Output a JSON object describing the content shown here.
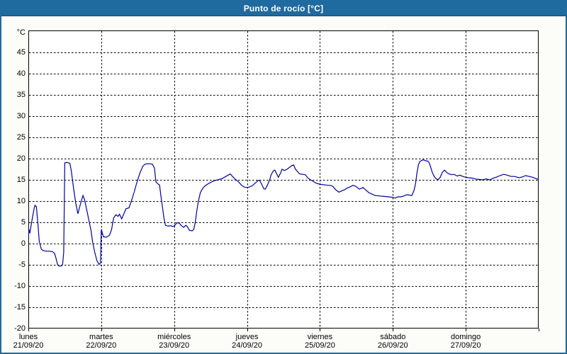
{
  "window": {
    "title": "Punto de rocío [°C]"
  },
  "colors": {
    "header_bg": "#1f6a9e",
    "frame_border": "#1f6a9e",
    "panel_bg": "#fcfdf8",
    "plot_bg": "#ffffff",
    "grid": "#000000",
    "line": "#0000a0",
    "title_text": "#ffffff",
    "axis_text": "#000000"
  },
  "chart_data": {
    "type": "line",
    "title": "Punto de rocío [°C]",
    "ylabel": "°C",
    "y_unit_label": "°C",
    "ylim": [
      -20,
      45
    ],
    "y_top_value": 50.17,
    "ytick_step": 5,
    "yticks": [
      45,
      40,
      35,
      30,
      25,
      20,
      15,
      10,
      5,
      0,
      -5,
      -10,
      -15,
      -20
    ],
    "grid": "dashed",
    "legend": "none",
    "x_axis_days": [
      {
        "name": "lunes",
        "date": "21/09/20"
      },
      {
        "name": "martes",
        "date": "22/09/20"
      },
      {
        "name": "miércoles",
        "date": "23/09/20"
      },
      {
        "name": "jueves",
        "date": "24/09/20"
      },
      {
        "name": "viernes",
        "date": "25/09/20"
      },
      {
        "name": "sábado",
        "date": "26/09/20"
      },
      {
        "name": "domingo",
        "date": "27/09/20"
      }
    ],
    "x_range_days": [
      0,
      7
    ],
    "series": [
      {
        "name": "punto_de_rocio",
        "units": "°C",
        "points": [
          [
            0.0,
            2.0
          ],
          [
            0.01,
            3.3
          ],
          [
            0.02,
            2.4
          ],
          [
            0.04,
            4.5
          ],
          [
            0.06,
            6.5
          ],
          [
            0.08,
            8.3
          ],
          [
            0.09,
            9.0
          ],
          [
            0.11,
            8.7
          ],
          [
            0.13,
            4.8
          ],
          [
            0.15,
            0.5
          ],
          [
            0.17,
            -0.8
          ],
          [
            0.18,
            -1.4
          ],
          [
            0.21,
            -1.7
          ],
          [
            0.25,
            -1.8
          ],
          [
            0.29,
            -1.8
          ],
          [
            0.33,
            -1.9
          ],
          [
            0.36,
            -2.3
          ],
          [
            0.38,
            -3.5
          ],
          [
            0.4,
            -4.9
          ],
          [
            0.42,
            -5.3
          ],
          [
            0.45,
            -5.3
          ],
          [
            0.47,
            -5.0
          ],
          [
            0.485,
            -2.0
          ],
          [
            0.49,
            5.0
          ],
          [
            0.5,
            19.0
          ],
          [
            0.53,
            19.1
          ],
          [
            0.57,
            18.9
          ],
          [
            0.59,
            17.0
          ],
          [
            0.62,
            13.0
          ],
          [
            0.65,
            9.5
          ],
          [
            0.68,
            7.0
          ],
          [
            0.71,
            9.0
          ],
          [
            0.74,
            10.8
          ],
          [
            0.75,
            11.3
          ],
          [
            0.77,
            10.4
          ],
          [
            0.8,
            8.0
          ],
          [
            0.83,
            5.5
          ],
          [
            0.86,
            3.0
          ],
          [
            0.88,
            0.5
          ],
          [
            0.91,
            -2.0
          ],
          [
            0.94,
            -4.0
          ],
          [
            0.97,
            -4.9
          ],
          [
            0.99,
            -4.6
          ],
          [
            1.0,
            3.3
          ],
          [
            1.01,
            2.8
          ],
          [
            1.03,
            1.6
          ],
          [
            1.07,
            1.5
          ],
          [
            1.11,
            1.9
          ],
          [
            1.14,
            3.2
          ],
          [
            1.17,
            6.0
          ],
          [
            1.2,
            6.8
          ],
          [
            1.23,
            6.4
          ],
          [
            1.25,
            6.9
          ],
          [
            1.28,
            5.8
          ],
          [
            1.31,
            7.0
          ],
          [
            1.34,
            8.2
          ],
          [
            1.38,
            8.4
          ],
          [
            1.41,
            9.8
          ],
          [
            1.45,
            12.0
          ],
          [
            1.49,
            14.5
          ],
          [
            1.53,
            16.6
          ],
          [
            1.57,
            18.2
          ],
          [
            1.6,
            18.7
          ],
          [
            1.65,
            18.8
          ],
          [
            1.7,
            18.7
          ],
          [
            1.73,
            17.8
          ],
          [
            1.75,
            14.5
          ],
          [
            1.78,
            14.0
          ],
          [
            1.8,
            13.8
          ],
          [
            1.82,
            11.0
          ],
          [
            1.84,
            8.5
          ],
          [
            1.86,
            6.0
          ],
          [
            1.88,
            4.3
          ],
          [
            1.92,
            4.1
          ],
          [
            1.95,
            4.2
          ],
          [
            1.99,
            4.0
          ],
          [
            2.01,
            4.3
          ],
          [
            2.04,
            4.9
          ],
          [
            2.07,
            4.8
          ],
          [
            2.1,
            4.2
          ],
          [
            2.13,
            3.8
          ],
          [
            2.16,
            4.3
          ],
          [
            2.18,
            4.0
          ],
          [
            2.21,
            3.1
          ],
          [
            2.25,
            3.0
          ],
          [
            2.27,
            3.4
          ],
          [
            2.29,
            5.0
          ],
          [
            2.31,
            7.6
          ],
          [
            2.33,
            9.8
          ],
          [
            2.36,
            12.0
          ],
          [
            2.4,
            13.2
          ],
          [
            2.44,
            13.8
          ],
          [
            2.49,
            14.3
          ],
          [
            2.55,
            14.8
          ],
          [
            2.6,
            15.0
          ],
          [
            2.66,
            15.3
          ],
          [
            2.71,
            15.8
          ],
          [
            2.75,
            16.2
          ],
          [
            2.77,
            16.4
          ],
          [
            2.8,
            15.8
          ],
          [
            2.84,
            15.1
          ],
          [
            2.88,
            14.6
          ],
          [
            2.92,
            13.8
          ],
          [
            2.96,
            13.3
          ],
          [
            2.99,
            13.2
          ],
          [
            3.03,
            13.3
          ],
          [
            3.07,
            13.6
          ],
          [
            3.11,
            14.2
          ],
          [
            3.15,
            14.8
          ],
          [
            3.17,
            14.9
          ],
          [
            3.2,
            14.0
          ],
          [
            3.23,
            12.9
          ],
          [
            3.25,
            12.8
          ],
          [
            3.28,
            13.8
          ],
          [
            3.31,
            15.0
          ],
          [
            3.33,
            16.2
          ],
          [
            3.36,
            17.1
          ],
          [
            3.38,
            17.3
          ],
          [
            3.41,
            16.3
          ],
          [
            3.43,
            15.6
          ],
          [
            3.46,
            16.6
          ],
          [
            3.48,
            17.5
          ],
          [
            3.51,
            17.2
          ],
          [
            3.54,
            17.4
          ],
          [
            3.58,
            17.9
          ],
          [
            3.62,
            18.4
          ],
          [
            3.64,
            18.5
          ],
          [
            3.66,
            17.6
          ],
          [
            3.69,
            17.0
          ],
          [
            3.72,
            16.4
          ],
          [
            3.76,
            16.3
          ],
          [
            3.8,
            16.2
          ],
          [
            3.83,
            15.5
          ],
          [
            3.87,
            15.0
          ],
          [
            3.91,
            14.6
          ],
          [
            3.95,
            14.2
          ],
          [
            3.99,
            14.0
          ],
          [
            4.03,
            13.9
          ],
          [
            4.07,
            13.8
          ],
          [
            4.11,
            13.7
          ],
          [
            4.15,
            13.7
          ],
          [
            4.18,
            13.4
          ],
          [
            4.22,
            12.6
          ],
          [
            4.26,
            12.1
          ],
          [
            4.3,
            12.4
          ],
          [
            4.34,
            12.7
          ],
          [
            4.38,
            13.1
          ],
          [
            4.42,
            13.4
          ],
          [
            4.45,
            13.7
          ],
          [
            4.49,
            13.5
          ],
          [
            4.54,
            12.8
          ],
          [
            4.59,
            13.2
          ],
          [
            4.63,
            12.6
          ],
          [
            4.67,
            12.0
          ],
          [
            4.72,
            11.6
          ],
          [
            4.76,
            11.3
          ],
          [
            4.82,
            11.2
          ],
          [
            4.88,
            11.1
          ],
          [
            4.94,
            11.0
          ],
          [
            4.99,
            10.9
          ],
          [
            5.03,
            10.7
          ],
          [
            5.07,
            11.0
          ],
          [
            5.11,
            11.0
          ],
          [
            5.15,
            11.2
          ],
          [
            5.19,
            11.5
          ],
          [
            5.23,
            11.4
          ],
          [
            5.26,
            11.3
          ],
          [
            5.29,
            12.5
          ],
          [
            5.31,
            14.0
          ],
          [
            5.33,
            16.5
          ],
          [
            5.35,
            18.5
          ],
          [
            5.37,
            19.3
          ],
          [
            5.4,
            19.6
          ],
          [
            5.42,
            19.7
          ],
          [
            5.45,
            19.5
          ],
          [
            5.48,
            19.4
          ],
          [
            5.5,
            19.0
          ],
          [
            5.52,
            17.9
          ],
          [
            5.54,
            16.8
          ],
          [
            5.57,
            15.7
          ],
          [
            5.59,
            15.3
          ],
          [
            5.62,
            15.0
          ],
          [
            5.65,
            15.6
          ],
          [
            5.68,
            16.8
          ],
          [
            5.71,
            17.3
          ],
          [
            5.74,
            16.7
          ],
          [
            5.77,
            16.4
          ],
          [
            5.81,
            16.2
          ],
          [
            5.84,
            16.3
          ],
          [
            5.88,
            15.9
          ],
          [
            5.92,
            16.1
          ],
          [
            5.96,
            15.8
          ],
          [
            6.0,
            15.6
          ],
          [
            6.04,
            15.5
          ],
          [
            6.09,
            15.4
          ],
          [
            6.13,
            15.2
          ],
          [
            6.18,
            15.1
          ],
          [
            6.23,
            15.0
          ],
          [
            6.28,
            15.2
          ],
          [
            6.33,
            15.0
          ],
          [
            6.38,
            15.4
          ],
          [
            6.43,
            15.7
          ],
          [
            6.47,
            16.0
          ],
          [
            6.52,
            16.3
          ],
          [
            6.57,
            16.1
          ],
          [
            6.62,
            15.8
          ],
          [
            6.67,
            15.8
          ],
          [
            6.73,
            15.5
          ],
          [
            6.78,
            15.7
          ],
          [
            6.82,
            16.0
          ],
          [
            6.87,
            15.8
          ],
          [
            6.92,
            15.6
          ],
          [
            6.96,
            15.3
          ],
          [
            7.0,
            15.1
          ]
        ]
      }
    ]
  }
}
